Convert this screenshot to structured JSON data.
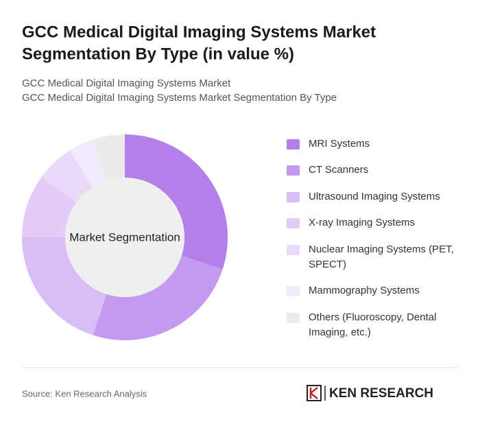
{
  "chart_data": {
    "type": "donut",
    "title": [
      "GCC Medical Digital Imaging Systems Market",
      "Segmentation By Type (in value %)"
    ],
    "subtitle": [
      "GCC Medical Digital Imaging Systems Market",
      "GCC Medical Digital Imaging Systems Market Segmentation By Type"
    ],
    "center_label": "Market Segmentation",
    "categories": [
      [
        "MRI Systems"
      ],
      [
        "CT Scanners"
      ],
      [
        "Ultrasound Imaging Systems"
      ],
      [
        "X-ray Imaging Systems"
      ],
      [
        "Nuclear Imaging Systems (PET,",
        "SPECT)"
      ],
      [
        "Mammography Systems"
      ],
      [
        "Others (Fluoroscopy, Dental",
        "Imaging, etc.)"
      ]
    ],
    "values": [
      30,
      25,
      20,
      10,
      6,
      4,
      5
    ],
    "colors": [
      "#b57fe9",
      "#c49af0",
      "#d9bdf5",
      "#e4ccf7",
      "#eadaf9",
      "#f1e9fc",
      "#ebebeb"
    ],
    "source": "Source: Ken Research Analysis",
    "brand": "KEN RESEARCH"
  }
}
